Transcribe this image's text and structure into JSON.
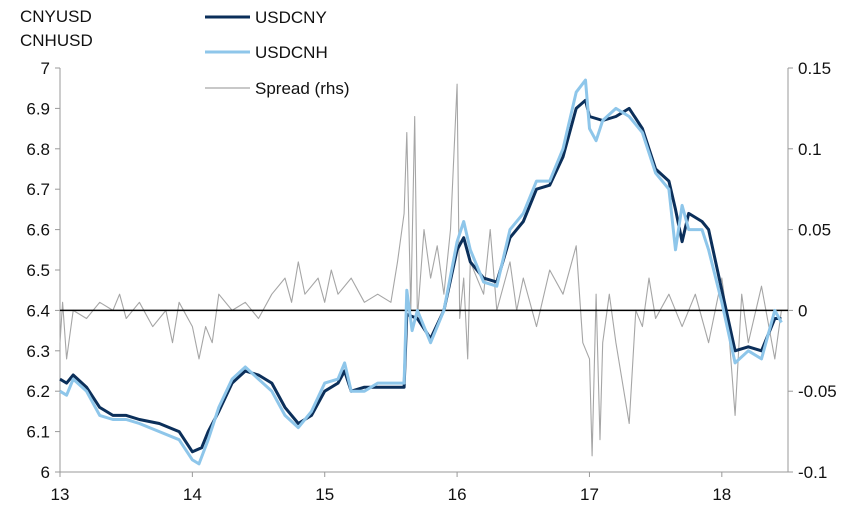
{
  "chart_data": {
    "type": "line",
    "left_axis_title": [
      "CNYUSD",
      "CNHUSD"
    ],
    "ylim_left": [
      6,
      7
    ],
    "yticks_left": [
      "6",
      "6.1",
      "6.2",
      "6.3",
      "6.4",
      "6.5",
      "6.6",
      "6.7",
      "6.8",
      "6.9",
      "7"
    ],
    "ylim_right": [
      -0.1,
      0.15
    ],
    "yticks_right": [
      "-0.1",
      "-0.05",
      "0",
      "0.05",
      "0.1",
      "0.15"
    ],
    "xlim": [
      13,
      18.5
    ],
    "xticks": [
      "13",
      "14",
      "15",
      "16",
      "17",
      "18"
    ],
    "legend": [
      "USDCNY",
      "USDCNH",
      "Spread (rhs)"
    ],
    "colors": {
      "USDCNY": "#0b2f5a",
      "USDCNH": "#8ec6ea",
      "Spread": "#a6a6a6",
      "zero": "#000000"
    },
    "series": [
      {
        "name": "USDCNY",
        "axis": "left",
        "x": [
          13.0,
          13.05,
          13.1,
          13.2,
          13.3,
          13.4,
          13.5,
          13.6,
          13.75,
          13.9,
          14.0,
          14.07,
          14.12,
          14.2,
          14.3,
          14.4,
          14.5,
          14.6,
          14.7,
          14.8,
          14.9,
          15.0,
          15.1,
          15.15,
          15.2,
          15.3,
          15.4,
          15.6,
          15.62,
          15.7,
          15.8,
          15.9,
          16.0,
          16.05,
          16.1,
          16.2,
          16.3,
          16.4,
          16.5,
          16.6,
          16.7,
          16.8,
          16.9,
          16.97,
          17.0,
          17.1,
          17.2,
          17.3,
          17.4,
          17.5,
          17.6,
          17.65,
          17.7,
          17.75,
          17.85,
          17.9,
          18.0,
          18.1,
          18.2,
          18.3,
          18.4,
          18.45
        ],
        "y": [
          6.23,
          6.22,
          6.24,
          6.21,
          6.16,
          6.14,
          6.14,
          6.13,
          6.12,
          6.1,
          6.05,
          6.06,
          6.1,
          6.15,
          6.22,
          6.25,
          6.24,
          6.22,
          6.16,
          6.12,
          6.14,
          6.2,
          6.22,
          6.25,
          6.2,
          6.21,
          6.21,
          6.21,
          6.39,
          6.38,
          6.33,
          6.4,
          6.55,
          6.58,
          6.52,
          6.48,
          6.47,
          6.58,
          6.62,
          6.7,
          6.71,
          6.78,
          6.9,
          6.92,
          6.88,
          6.87,
          6.88,
          6.9,
          6.85,
          6.75,
          6.72,
          6.65,
          6.57,
          6.64,
          6.62,
          6.6,
          6.45,
          6.3,
          6.31,
          6.3,
          6.38,
          6.38
        ]
      },
      {
        "name": "USDCNH",
        "axis": "left",
        "x": [
          13.0,
          13.05,
          13.1,
          13.2,
          13.3,
          13.4,
          13.5,
          13.6,
          13.75,
          13.9,
          14.0,
          14.05,
          14.12,
          14.2,
          14.3,
          14.4,
          14.5,
          14.6,
          14.7,
          14.8,
          14.9,
          15.0,
          15.1,
          15.15,
          15.2,
          15.3,
          15.4,
          15.6,
          15.62,
          15.66,
          15.7,
          15.8,
          15.9,
          16.0,
          16.05,
          16.1,
          16.2,
          16.3,
          16.4,
          16.5,
          16.6,
          16.7,
          16.8,
          16.9,
          16.97,
          17.0,
          17.05,
          17.1,
          17.2,
          17.3,
          17.4,
          17.5,
          17.6,
          17.65,
          17.7,
          17.75,
          17.85,
          17.9,
          18.0,
          18.1,
          18.2,
          18.3,
          18.4,
          18.45
        ],
        "y": [
          6.2,
          6.19,
          6.23,
          6.2,
          6.14,
          6.13,
          6.13,
          6.12,
          6.1,
          6.08,
          6.03,
          6.02,
          6.08,
          6.16,
          6.23,
          6.26,
          6.23,
          6.2,
          6.14,
          6.11,
          6.15,
          6.22,
          6.23,
          6.27,
          6.2,
          6.2,
          6.22,
          6.22,
          6.45,
          6.35,
          6.4,
          6.32,
          6.4,
          6.57,
          6.62,
          6.55,
          6.47,
          6.46,
          6.6,
          6.64,
          6.72,
          6.72,
          6.8,
          6.94,
          6.97,
          6.85,
          6.82,
          6.87,
          6.9,
          6.88,
          6.84,
          6.74,
          6.7,
          6.55,
          6.66,
          6.6,
          6.6,
          6.55,
          6.42,
          6.27,
          6.3,
          6.28,
          6.4,
          6.37
        ]
      },
      {
        "name": "Spread (rhs)",
        "axis": "right",
        "x": [
          13.0,
          13.02,
          13.05,
          13.1,
          13.2,
          13.3,
          13.4,
          13.45,
          13.5,
          13.6,
          13.7,
          13.8,
          13.85,
          13.9,
          14.0,
          14.05,
          14.1,
          14.15,
          14.2,
          14.3,
          14.4,
          14.5,
          14.6,
          14.7,
          14.75,
          14.8,
          14.85,
          14.95,
          15.0,
          15.05,
          15.1,
          15.2,
          15.3,
          15.4,
          15.5,
          15.55,
          15.6,
          15.62,
          15.65,
          15.68,
          15.7,
          15.75,
          15.8,
          15.85,
          15.9,
          15.95,
          16.0,
          16.02,
          16.05,
          16.08,
          16.1,
          16.2,
          16.25,
          16.3,
          16.4,
          16.45,
          16.5,
          16.6,
          16.7,
          16.8,
          16.9,
          16.95,
          17.0,
          17.02,
          17.05,
          17.08,
          17.1,
          17.15,
          17.2,
          17.3,
          17.35,
          17.4,
          17.45,
          17.5,
          17.6,
          17.7,
          17.8,
          17.9,
          18.0,
          18.05,
          18.1,
          18.15,
          18.2,
          18.3,
          18.4,
          18.45
        ],
        "y": [
          -0.02,
          0.005,
          -0.03,
          0.0,
          -0.005,
          0.005,
          0.0,
          0.01,
          -0.005,
          0.005,
          -0.01,
          0.0,
          -0.02,
          0.005,
          -0.01,
          -0.03,
          -0.01,
          -0.02,
          0.01,
          0.0,
          0.005,
          -0.005,
          0.01,
          0.02,
          0.005,
          0.03,
          0.01,
          0.02,
          0.005,
          0.025,
          0.01,
          0.02,
          0.005,
          0.01,
          0.005,
          0.03,
          0.06,
          0.11,
          0.0,
          0.12,
          -0.005,
          0.05,
          0.02,
          0.04,
          0.01,
          0.05,
          0.14,
          -0.005,
          0.02,
          -0.03,
          0.03,
          0.01,
          0.05,
          0.0,
          0.03,
          0.0,
          0.02,
          -0.01,
          0.025,
          0.01,
          0.04,
          -0.02,
          -0.03,
          -0.09,
          0.01,
          -0.08,
          -0.02,
          0.01,
          -0.02,
          -0.07,
          0.0,
          -0.01,
          0.02,
          -0.005,
          0.01,
          -0.01,
          0.01,
          -0.02,
          0.02,
          -0.01,
          -0.065,
          0.01,
          -0.02,
          0.015,
          -0.03,
          0.0
        ]
      }
    ]
  }
}
